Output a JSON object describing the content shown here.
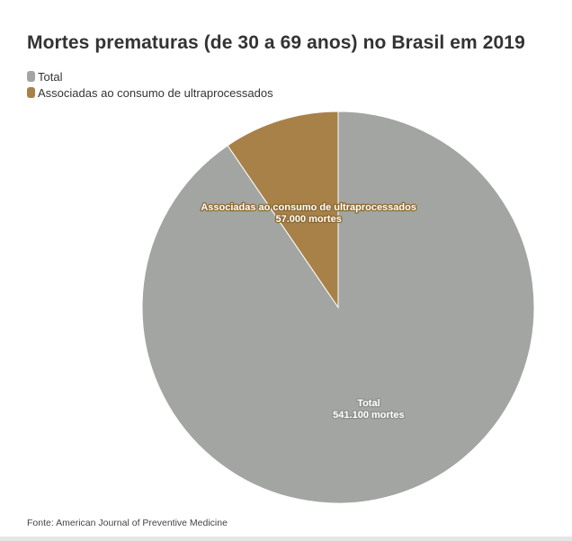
{
  "title": "Mortes prematuras (de 30 a 69 anos) no Brasil em 2019",
  "source": "Fonte: American Journal of Preventive Medicine",
  "legend": [
    {
      "label": "Total",
      "color": "#a2a5a2"
    },
    {
      "label": "Associadas ao consumo de ultraprocessados",
      "color": "#a88149"
    }
  ],
  "chart_data": {
    "type": "pie",
    "title": "Mortes prematuras (de 30 a 69 anos) no Brasil em 2019",
    "slices": [
      {
        "label": "Total",
        "value": 541100,
        "value_text": "541.100 mortes",
        "color": "#a2a5a2"
      },
      {
        "label": "Associadas ao consumo de ultraprocessados",
        "value": 57000,
        "value_text": "57.000 mortes",
        "color": "#a88149"
      }
    ],
    "legend_position": "top-left"
  }
}
